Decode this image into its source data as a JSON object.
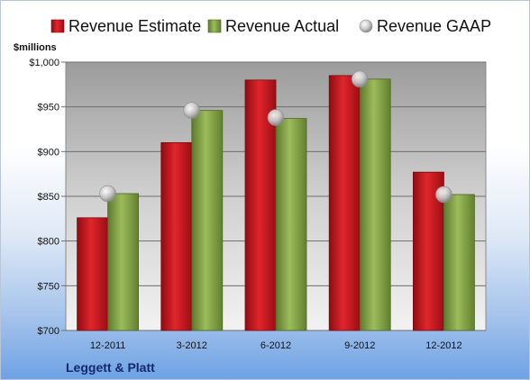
{
  "chart_data": {
    "type": "bar",
    "ylabel": "$millions",
    "categories": [
      "12-2011",
      "3-2012",
      "6-2012",
      "9-2012",
      "12-2012"
    ],
    "series": [
      {
        "name": "Revenue Estimate",
        "color": "#c8141e",
        "values": [
          826,
          910,
          980,
          985,
          877
        ]
      },
      {
        "name": "Revenue Actual",
        "color": "#86a64a",
        "values": [
          853,
          946,
          937,
          981,
          852
        ]
      },
      {
        "name": "Revenue GAAP",
        "color": "#c0c0c0",
        "kind": "marker",
        "values": [
          853,
          946,
          938,
          981,
          852
        ]
      }
    ],
    "ylim": [
      700,
      1000
    ],
    "yticks": [
      700,
      750,
      800,
      850,
      900,
      950,
      1000
    ],
    "ytick_labels": [
      "$700",
      "$750",
      "$800",
      "$850",
      "$900",
      "$950",
      "$1,000"
    ],
    "legend_position": "top",
    "grid": true
  },
  "footer": {
    "company": "Leggett & Platt"
  }
}
